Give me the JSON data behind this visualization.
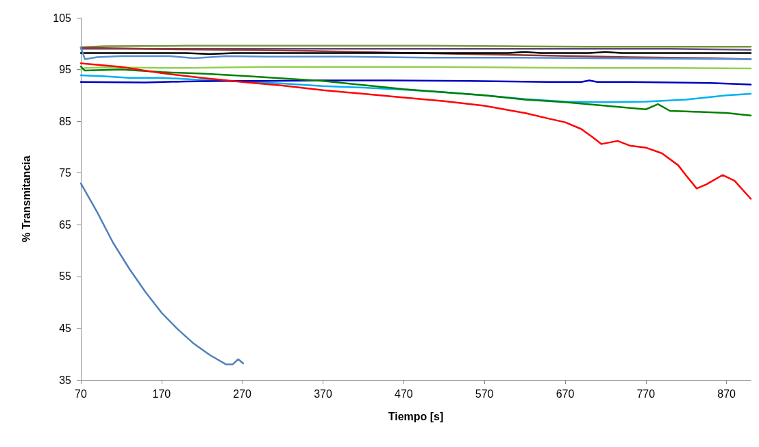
{
  "chart_data": {
    "type": "line",
    "xlabel": "Tiempo [s]",
    "ylabel": "% Transmitancia",
    "xlim": [
      70,
      900
    ],
    "xticks": [
      70,
      170,
      270,
      370,
      470,
      570,
      670,
      770,
      870
    ],
    "ylim": [
      35,
      105
    ],
    "yticks": [
      35,
      45,
      55,
      65,
      75,
      85,
      95,
      105
    ],
    "grid": false,
    "marker": "none",
    "line_style": "solid",
    "series": [
      {
        "color": "#77933c",
        "x": [
          70,
          100,
          200,
          300,
          400,
          500,
          600,
          700,
          800,
          900
        ],
        "values": [
          99.3,
          99.5,
          99.6,
          99.6,
          99.6,
          99.6,
          99.5,
          99.4,
          99.4,
          99.4
        ]
      },
      {
        "color": "#604a7b",
        "x": [
          70,
          200,
          300,
          400,
          500,
          600,
          700,
          800,
          900
        ],
        "values": [
          99.0,
          99.0,
          99.0,
          99.0,
          99.0,
          99.0,
          99.0,
          99.0,
          98.8
        ]
      },
      {
        "color": "#953735",
        "x": [
          70,
          150,
          250,
          350,
          450,
          550,
          650,
          750,
          850,
          900
        ],
        "values": [
          99.2,
          99.0,
          98.8,
          98.6,
          98.3,
          98.0,
          97.7,
          97.4,
          97.2,
          97.0
        ]
      },
      {
        "color": "#000000",
        "x": [
          70,
          200,
          230,
          260,
          300,
          400,
          500,
          600,
          620,
          640,
          700,
          720,
          740,
          800,
          900
        ],
        "values": [
          98.2,
          98.2,
          98.0,
          98.2,
          98.2,
          98.2,
          98.2,
          98.2,
          98.4,
          98.2,
          98.2,
          98.4,
          98.2,
          98.2,
          98.2
        ]
      },
      {
        "color": "#558ed5",
        "x": [
          70,
          75,
          90,
          120,
          180,
          210,
          250,
          300,
          400,
          500,
          600,
          700,
          800,
          900
        ],
        "values": [
          99.3,
          97.0,
          97.4,
          97.6,
          97.6,
          97.2,
          97.6,
          97.5,
          97.5,
          97.3,
          97.3,
          97.2,
          97.1,
          97.0
        ]
      },
      {
        "color": "#92d050",
        "x": [
          70,
          75,
          100,
          200,
          300,
          400,
          500,
          600,
          700,
          800,
          900
        ],
        "values": [
          95.0,
          95.3,
          95.4,
          95.3,
          95.5,
          95.5,
          95.5,
          95.4,
          95.3,
          95.3,
          95.2
        ]
      },
      {
        "color": "#00b0f0",
        "x": [
          70,
          100,
          130,
          170,
          220,
          270,
          320,
          370,
          420,
          470,
          520,
          570,
          620,
          670,
          720,
          770,
          820,
          870,
          900
        ],
        "values": [
          93.9,
          93.7,
          93.4,
          93.4,
          93.0,
          92.7,
          92.3,
          91.8,
          91.5,
          91.1,
          90.6,
          90.0,
          89.3,
          88.8,
          88.7,
          88.8,
          89.2,
          90.0,
          90.3
        ]
      },
      {
        "color": "#0000c0",
        "x": [
          70,
          150,
          200,
          250,
          300,
          370,
          450,
          550,
          650,
          690,
          700,
          710,
          750,
          850,
          900
        ],
        "values": [
          92.6,
          92.5,
          92.7,
          92.8,
          92.8,
          92.9,
          92.9,
          92.8,
          92.6,
          92.6,
          92.9,
          92.6,
          92.6,
          92.4,
          92.1
        ]
      },
      {
        "color": "#008000",
        "x": [
          70,
          75,
          120,
          170,
          220,
          270,
          320,
          370,
          420,
          470,
          520,
          570,
          620,
          670,
          720,
          770,
          785,
          800,
          820,
          870,
          900
        ],
        "values": [
          95.6,
          94.8,
          95.0,
          94.5,
          94.2,
          93.8,
          93.3,
          92.8,
          92.0,
          91.2,
          90.6,
          90.0,
          89.2,
          88.7,
          88.0,
          87.3,
          88.3,
          87.0,
          86.9,
          86.6,
          86.1
        ]
      },
      {
        "color": "#ff0000",
        "x": [
          70,
          120,
          170,
          220,
          270,
          320,
          370,
          420,
          470,
          520,
          570,
          620,
          650,
          670,
          690,
          705,
          715,
          735,
          750,
          770,
          790,
          810,
          820,
          833,
          845,
          865,
          880,
          900
        ],
        "values": [
          96.2,
          95.5,
          94.3,
          93.4,
          92.6,
          91.9,
          91.0,
          90.3,
          89.6,
          88.9,
          88.0,
          86.6,
          85.5,
          84.8,
          83.5,
          81.8,
          80.6,
          81.2,
          80.3,
          79.9,
          78.8,
          76.5,
          74.5,
          72.0,
          72.8,
          74.6,
          73.5,
          70.0
        ]
      },
      {
        "color": "#4f81bd",
        "x": [
          70,
          90,
          110,
          130,
          150,
          170,
          190,
          210,
          230,
          250,
          258,
          265,
          271
        ],
        "values": [
          73.0,
          67.5,
          61.5,
          56.5,
          52.0,
          48.0,
          44.8,
          42.0,
          39.8,
          38.0,
          38.0,
          39.0,
          38.2
        ]
      }
    ]
  }
}
